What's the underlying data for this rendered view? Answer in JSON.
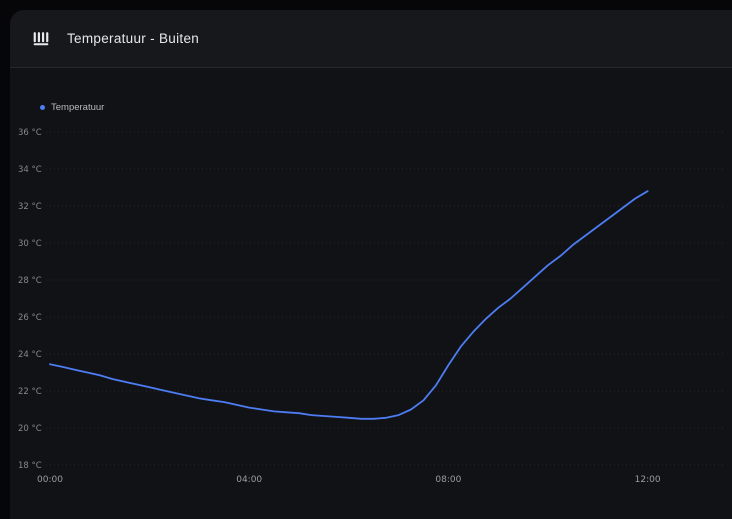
{
  "header": {
    "title": "Temperatuur - Buiten",
    "icon": "radiator-icon"
  },
  "legend": [
    {
      "label": "Temperatuur",
      "color": "#4d7cf3"
    }
  ],
  "chart_data": {
    "type": "line",
    "title": "Temperatuur - Buiten",
    "xlabel": "",
    "ylabel": "°C",
    "ylim": [
      18,
      36
    ],
    "grid": "horizontal-dotted",
    "legend_position": "top-left",
    "background": "#111216",
    "grid_color": "#26272c",
    "tick_color": "#85888f",
    "yticks": [
      36,
      34,
      32,
      30,
      28,
      26,
      24,
      22,
      20,
      18
    ],
    "ytick_suffix": " °C",
    "xticks": [
      "00:00",
      "04:00",
      "08:00",
      "12:00"
    ],
    "series": [
      {
        "name": "Temperatuur",
        "color": "#4d7cf3",
        "x": [
          "00:00",
          "00:15",
          "00:30",
          "00:45",
          "01:00",
          "01:15",
          "01:30",
          "01:45",
          "02:00",
          "02:15",
          "02:30",
          "02:45",
          "03:00",
          "03:15",
          "03:30",
          "03:45",
          "04:00",
          "04:15",
          "04:30",
          "04:45",
          "05:00",
          "05:15",
          "05:30",
          "05:45",
          "06:00",
          "06:15",
          "06:30",
          "06:45",
          "07:00",
          "07:15",
          "07:30",
          "07:45",
          "08:00",
          "08:15",
          "08:30",
          "08:45",
          "09:00",
          "09:15",
          "09:30",
          "09:45",
          "10:00",
          "10:15",
          "10:30",
          "10:45",
          "11:00",
          "11:15",
          "11:30",
          "11:45",
          "12:00"
        ],
        "values": [
          23.45,
          23.3,
          23.15,
          23.0,
          22.85,
          22.65,
          22.5,
          22.35,
          22.2,
          22.05,
          21.9,
          21.75,
          21.6,
          21.5,
          21.4,
          21.25,
          21.1,
          21.0,
          20.9,
          20.85,
          20.8,
          20.7,
          20.65,
          20.6,
          20.55,
          20.5,
          20.5,
          20.55,
          20.7,
          21.0,
          21.5,
          22.3,
          23.4,
          24.4,
          25.2,
          25.9,
          26.5,
          27.0,
          27.6,
          28.2,
          28.8,
          29.3,
          29.9,
          30.4,
          30.9,
          31.4,
          31.9,
          32.4,
          32.8
        ]
      }
    ]
  }
}
